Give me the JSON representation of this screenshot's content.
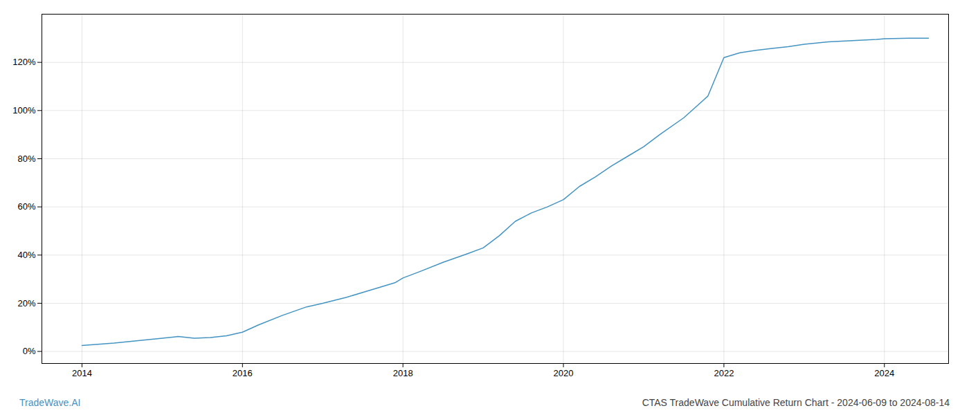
{
  "chart_data": {
    "type": "line",
    "title": "CTAS TradeWave Cumulative Return Chart - 2024-06-09 to 2024-08-14",
    "annotations": [
      {
        "text": "TradeWave.AI",
        "color": "#4393c3"
      }
    ],
    "color": "#4393c3",
    "x": [
      2014.0,
      2014.4,
      2014.7,
      2015.0,
      2015.2,
      2015.4,
      2015.6,
      2015.8,
      2016.0,
      2016.2,
      2016.5,
      2016.8,
      2017.0,
      2017.3,
      2017.6,
      2017.9,
      2018.0,
      2018.2,
      2018.5,
      2018.8,
      2019.0,
      2019.2,
      2019.4,
      2019.6,
      2019.8,
      2020.0,
      2020.2,
      2020.4,
      2020.6,
      2020.8,
      2021.0,
      2021.2,
      2021.5,
      2021.8,
      2022.0,
      2022.2,
      2022.4,
      2022.6,
      2022.8,
      2023.0,
      2023.3,
      2023.6,
      2023.9,
      2024.0,
      2024.3,
      2024.55
    ],
    "values": [
      2.5,
      3.5,
      4.5,
      5.5,
      6.2,
      5.5,
      5.8,
      6.5,
      8.0,
      11.0,
      15.0,
      18.5,
      20.0,
      22.5,
      25.5,
      28.5,
      30.5,
      33.0,
      37.0,
      40.5,
      43.0,
      48.0,
      54.0,
      57.5,
      60.0,
      63.0,
      68.5,
      72.5,
      77.0,
      81.0,
      85.0,
      90.0,
      97.0,
      106.0,
      122.0,
      124.0,
      125.0,
      125.8,
      126.5,
      127.5,
      128.5,
      129.0,
      129.5,
      129.8,
      130.0,
      130.0
    ],
    "xlim": [
      2013.5,
      2024.8
    ],
    "ylim": [
      -5,
      140
    ],
    "xticks": [
      2014,
      2016,
      2018,
      2020,
      2022,
      2024
    ],
    "yticks": [
      {
        "value": 0,
        "label": "0%"
      },
      {
        "value": 20,
        "label": "20%"
      },
      {
        "value": 40,
        "label": "40%"
      },
      {
        "value": 60,
        "label": "60%"
      },
      {
        "value": 80,
        "label": "80%"
      },
      {
        "value": 100,
        "label": "100%"
      },
      {
        "value": 120,
        "label": "120%"
      }
    ],
    "grid": true
  }
}
